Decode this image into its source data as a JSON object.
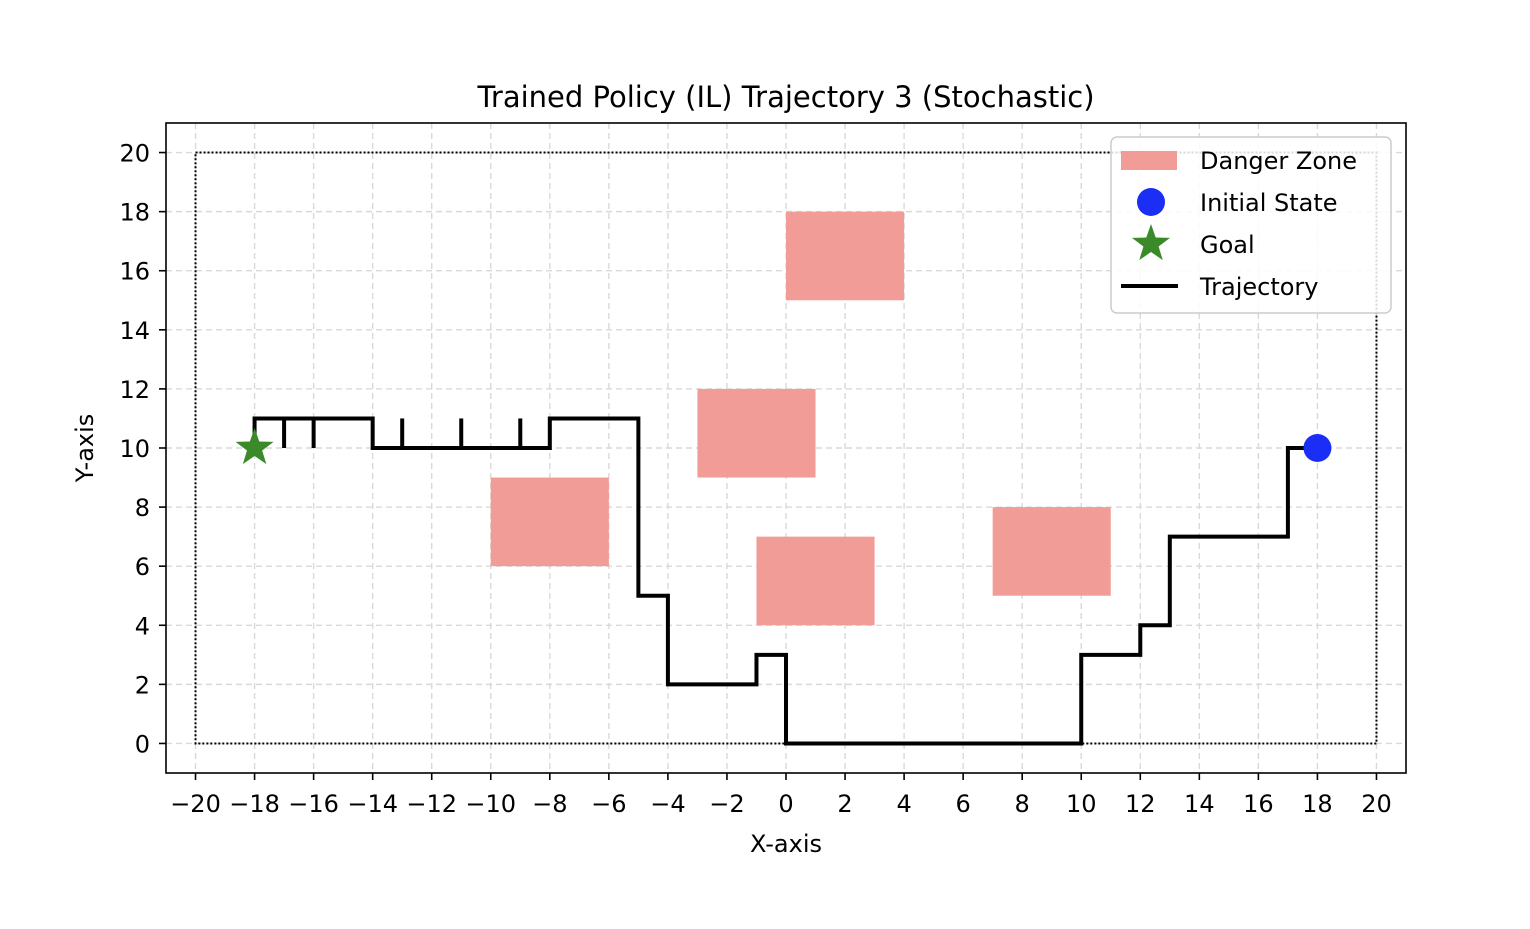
{
  "chart_data": {
    "type": "line",
    "title": "Trained Policy (IL) Trajectory 3 (Stochastic)",
    "xlabel": "X-axis",
    "ylabel": "Y-axis",
    "xlim": [
      -21,
      21
    ],
    "ylim": [
      -1,
      21
    ],
    "xticks": [
      -20,
      -18,
      -16,
      -14,
      -12,
      -10,
      -8,
      -6,
      -4,
      -2,
      0,
      2,
      4,
      6,
      8,
      10,
      12,
      14,
      16,
      18,
      20
    ],
    "yticks": [
      0,
      2,
      4,
      6,
      8,
      10,
      12,
      14,
      16,
      18,
      20
    ],
    "xtick_labels": [
      "−20",
      "−18",
      "−16",
      "−14",
      "−12",
      "−10",
      "−8",
      "−6",
      "−4",
      "−2",
      "0",
      "2",
      "4",
      "6",
      "8",
      "10",
      "12",
      "14",
      "16",
      "18",
      "20"
    ],
    "ytick_labels": [
      "0",
      "2",
      "4",
      "6",
      "8",
      "10",
      "12",
      "14",
      "16",
      "18",
      "20"
    ],
    "grid": true,
    "boundary": {
      "x": [
        -20,
        20
      ],
      "y": [
        0,
        20
      ]
    },
    "legend": {
      "placement": "top-right",
      "entries": [
        {
          "label": "Danger Zone",
          "kind": "patch"
        },
        {
          "label": "Initial State",
          "kind": "dot"
        },
        {
          "label": "Goal",
          "kind": "star"
        },
        {
          "label": "Trajectory",
          "kind": "line"
        }
      ]
    },
    "danger_zones": [
      {
        "x": [
          0,
          4
        ],
        "y": [
          15,
          18
        ]
      },
      {
        "x": [
          -3,
          1
        ],
        "y": [
          9,
          12
        ]
      },
      {
        "x": [
          -10,
          -6
        ],
        "y": [
          6,
          9
        ]
      },
      {
        "x": [
          -1,
          3
        ],
        "y": [
          4,
          7
        ]
      },
      {
        "x": [
          7,
          11
        ],
        "y": [
          5,
          8
        ]
      }
    ],
    "initial_state": {
      "x": 18,
      "y": 10
    },
    "goal": {
      "x": -18,
      "y": 10
    },
    "trajectory": [
      [
        18,
        10
      ],
      [
        17,
        10
      ],
      [
        17,
        7
      ],
      [
        13,
        7
      ],
      [
        13,
        4
      ],
      [
        12,
        4
      ],
      [
        12,
        3
      ],
      [
        10,
        3
      ],
      [
        10,
        0
      ],
      [
        0,
        0
      ],
      [
        0,
        3
      ],
      [
        -1,
        3
      ],
      [
        -1,
        2
      ],
      [
        -4,
        2
      ],
      [
        -4,
        5
      ],
      [
        -5,
        5
      ],
      [
        -5,
        11
      ],
      [
        -8,
        11
      ],
      [
        -8,
        10
      ],
      [
        -14,
        10
      ],
      [
        -14,
        11
      ],
      [
        -18,
        11
      ],
      [
        -18,
        10
      ]
    ],
    "trajectory_spurs": [
      {
        "x": -17,
        "y": [
          10,
          11
        ]
      },
      {
        "x": -16,
        "y": [
          10,
          11
        ]
      },
      {
        "x": -13,
        "y": [
          10,
          11
        ]
      },
      {
        "x": -11,
        "y": [
          10,
          11
        ]
      },
      {
        "x": -9,
        "y": [
          10,
          11
        ]
      }
    ],
    "colors": {
      "danger_zone": "#f19c97",
      "initial_state": "#1b2ef5",
      "goal": "#3b8a2a",
      "trajectory": "#000000",
      "grid": "#d9d9d9",
      "axes": "#000000"
    }
  }
}
